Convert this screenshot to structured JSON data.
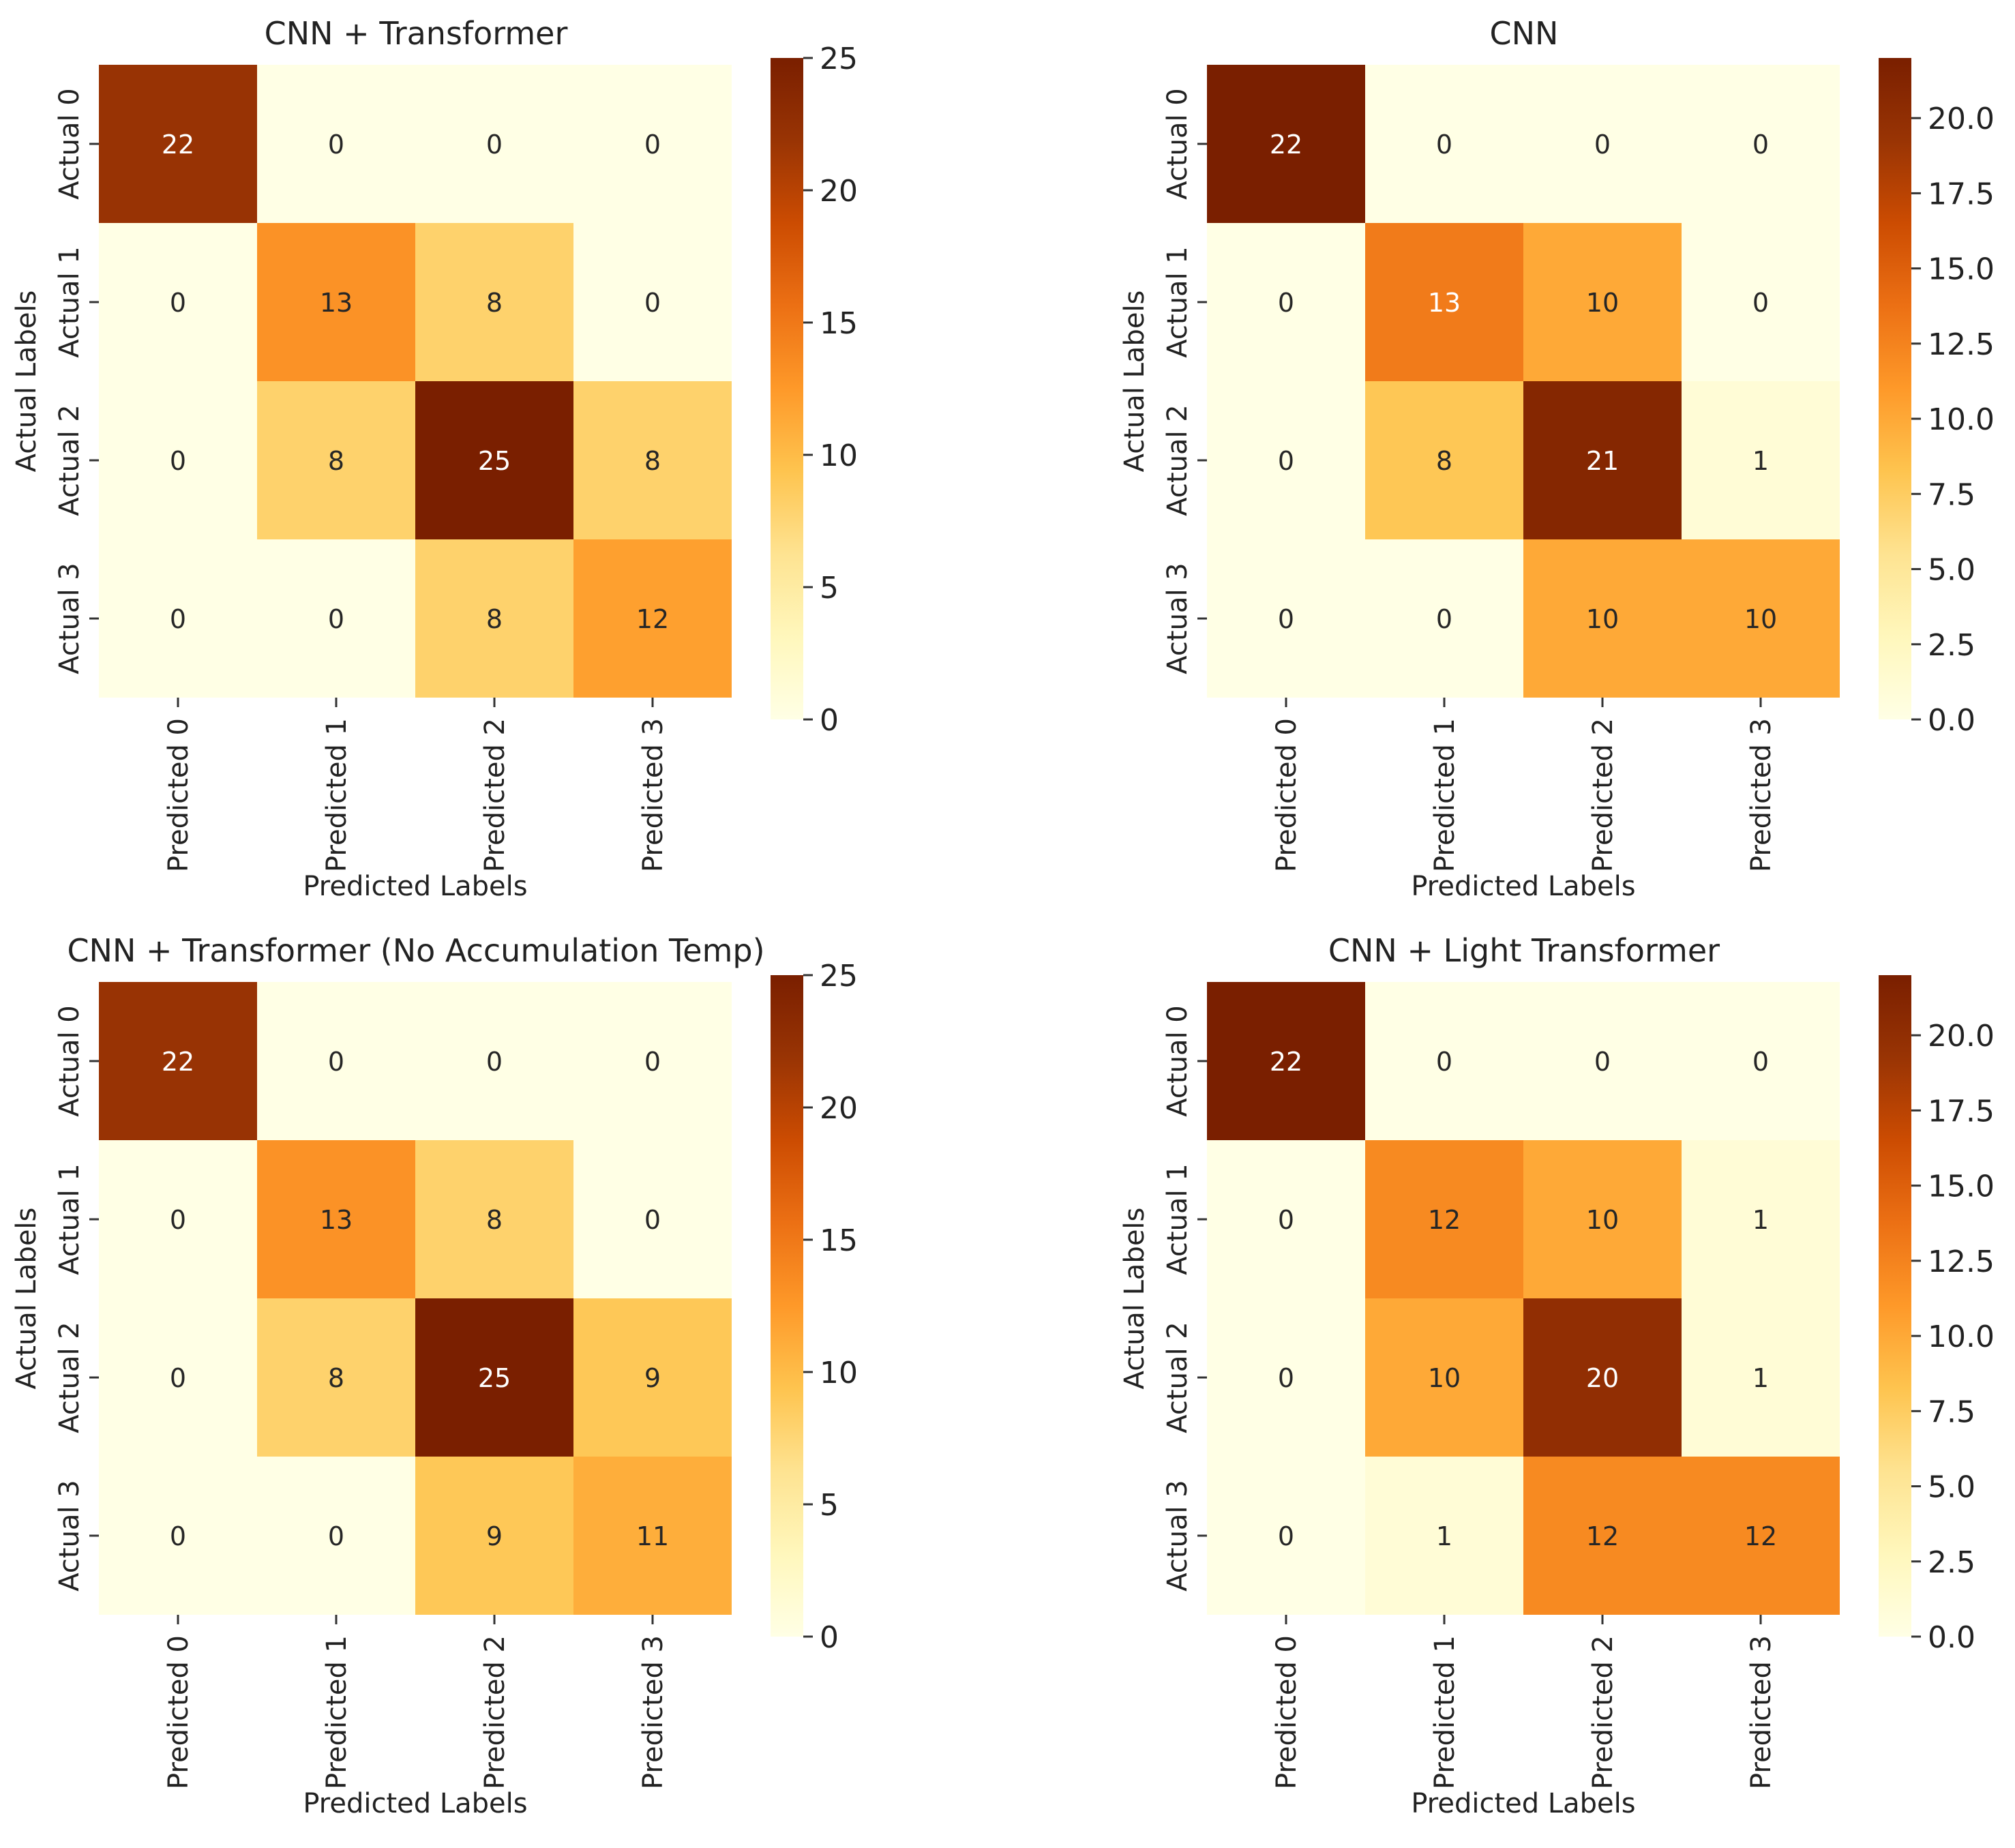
{
  "colormap": {
    "name": "YlOrBr / afmhot-style",
    "stops": [
      "#ffffe5",
      "#fff7bc",
      "#fee391",
      "#fec44f",
      "#fe9929",
      "#ec7014",
      "#cc4c02",
      "#993404",
      "#7a1f00"
    ]
  },
  "chart_data": [
    {
      "type": "heatmap",
      "title": "CNN + Transformer",
      "xlabel": "Predicted Labels",
      "ylabel": "Actual Labels",
      "x_categories": [
        "Predicted 0",
        "Predicted 1",
        "Predicted 2",
        "Predicted 3"
      ],
      "y_categories": [
        "Actual 0",
        "Actual 1",
        "Actual 2",
        "Actual 3"
      ],
      "values": [
        [
          22,
          0,
          0,
          0
        ],
        [
          0,
          13,
          8,
          0
        ],
        [
          0,
          8,
          25,
          8
        ],
        [
          0,
          0,
          8,
          12
        ]
      ],
      "vmin": 0,
      "vmax": 25,
      "colorbar_ticks": [
        0,
        5,
        10,
        15,
        20,
        25
      ],
      "colorbar_tick_labels": [
        "0",
        "5",
        "10",
        "15",
        "20",
        "25"
      ]
    },
    {
      "type": "heatmap",
      "title": "CNN",
      "xlabel": "Predicted Labels",
      "ylabel": "Actual Labels",
      "x_categories": [
        "Predicted 0",
        "Predicted 1",
        "Predicted 2",
        "Predicted 3"
      ],
      "y_categories": [
        "Actual 0",
        "Actual 1",
        "Actual 2",
        "Actual 3"
      ],
      "values": [
        [
          22,
          0,
          0,
          0
        ],
        [
          0,
          13,
          10,
          0
        ],
        [
          0,
          8,
          21,
          1
        ],
        [
          0,
          0,
          10,
          10
        ]
      ],
      "vmin": 0,
      "vmax": 22,
      "colorbar_ticks": [
        0,
        2.5,
        5,
        7.5,
        10,
        12.5,
        15,
        17.5,
        20
      ],
      "colorbar_tick_labels": [
        "0.0",
        "2.5",
        "5.0",
        "7.5",
        "10.0",
        "12.5",
        "15.0",
        "17.5",
        "20.0"
      ]
    },
    {
      "type": "heatmap",
      "title": "CNN + Transformer (No Accumulation Temp)",
      "xlabel": "Predicted Labels",
      "ylabel": "Actual Labels",
      "x_categories": [
        "Predicted 0",
        "Predicted 1",
        "Predicted 2",
        "Predicted 3"
      ],
      "y_categories": [
        "Actual 0",
        "Actual 1",
        "Actual 2",
        "Actual 3"
      ],
      "values": [
        [
          22,
          0,
          0,
          0
        ],
        [
          0,
          13,
          8,
          0
        ],
        [
          0,
          8,
          25,
          9
        ],
        [
          0,
          0,
          9,
          11
        ]
      ],
      "vmin": 0,
      "vmax": 25,
      "colorbar_ticks": [
        0,
        5,
        10,
        15,
        20,
        25
      ],
      "colorbar_tick_labels": [
        "0",
        "5",
        "10",
        "15",
        "20",
        "25"
      ]
    },
    {
      "type": "heatmap",
      "title": "CNN + Light Transformer",
      "xlabel": "Predicted Labels",
      "ylabel": "Actual Labels",
      "x_categories": [
        "Predicted 0",
        "Predicted 1",
        "Predicted 2",
        "Predicted 3"
      ],
      "y_categories": [
        "Actual 0",
        "Actual 1",
        "Actual 2",
        "Actual 3"
      ],
      "values": [
        [
          22,
          0,
          0,
          0
        ],
        [
          0,
          12,
          10,
          1
        ],
        [
          0,
          10,
          20,
          1
        ],
        [
          0,
          1,
          12,
          12
        ]
      ],
      "vmin": 0,
      "vmax": 22,
      "colorbar_ticks": [
        0,
        2.5,
        5,
        7.5,
        10,
        12.5,
        15,
        17.5,
        20
      ],
      "colorbar_tick_labels": [
        "0.0",
        "2.5",
        "5.0",
        "7.5",
        "10.0",
        "12.5",
        "15.0",
        "17.5",
        "20.0"
      ]
    }
  ]
}
